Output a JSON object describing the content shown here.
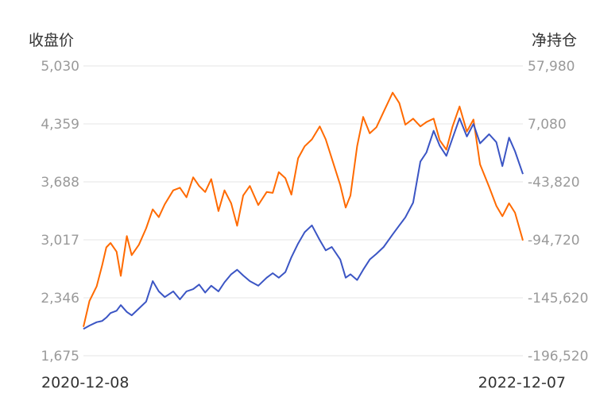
{
  "axes": {
    "left_title": "收盘价",
    "right_title": "净持仓"
  },
  "chart_data": {
    "type": "line",
    "title": "",
    "grid": true,
    "x_range": [
      "2020-12-08",
      "2022-12-07"
    ],
    "x_tick_labels": [
      "2020-12-08",
      "2022-12-07"
    ],
    "y_left": {
      "label": "收盘价",
      "range": [
        1675,
        5030
      ],
      "tick_labels": [
        "5,030",
        "4,359",
        "3,688",
        "3,017",
        "2,346",
        "1,675"
      ]
    },
    "y_right": {
      "label": "净持仓",
      "range": [
        -196520,
        57980
      ],
      "tick_labels": [
        "57,980",
        "7,080",
        "-43,820",
        "-94,720",
        "-145,620",
        "-196,520"
      ]
    },
    "series": [
      {
        "axis": "left",
        "color": "#ff6a00",
        "points": [
          [
            "2020-12-08",
            2010
          ],
          [
            "2020-12-18",
            2310
          ],
          [
            "2020-12-30",
            2480
          ],
          [
            "2021-01-08",
            2720
          ],
          [
            "2021-01-15",
            2930
          ],
          [
            "2021-01-22",
            2980
          ],
          [
            "2021-02-01",
            2880
          ],
          [
            "2021-02-08",
            2600
          ],
          [
            "2021-02-18",
            3060
          ],
          [
            "2021-02-26",
            2840
          ],
          [
            "2021-03-10",
            2960
          ],
          [
            "2021-03-22",
            3150
          ],
          [
            "2021-04-02",
            3370
          ],
          [
            "2021-04-12",
            3280
          ],
          [
            "2021-04-22",
            3430
          ],
          [
            "2021-05-06",
            3590
          ],
          [
            "2021-05-17",
            3620
          ],
          [
            "2021-05-28",
            3510
          ],
          [
            "2021-06-08",
            3740
          ],
          [
            "2021-06-18",
            3640
          ],
          [
            "2021-06-28",
            3570
          ],
          [
            "2021-07-08",
            3720
          ],
          [
            "2021-07-20",
            3350
          ],
          [
            "2021-07-30",
            3590
          ],
          [
            "2021-08-10",
            3440
          ],
          [
            "2021-08-20",
            3180
          ],
          [
            "2021-08-30",
            3530
          ],
          [
            "2021-09-10",
            3640
          ],
          [
            "2021-09-24",
            3420
          ],
          [
            "2021-10-08",
            3570
          ],
          [
            "2021-10-18",
            3560
          ],
          [
            "2021-10-28",
            3800
          ],
          [
            "2021-11-08",
            3730
          ],
          [
            "2021-11-18",
            3540
          ],
          [
            "2021-11-29",
            3960
          ],
          [
            "2021-12-10",
            4100
          ],
          [
            "2021-12-22",
            4180
          ],
          [
            "2022-01-04",
            4330
          ],
          [
            "2022-01-14",
            4180
          ],
          [
            "2022-01-24",
            3960
          ],
          [
            "2022-02-07",
            3650
          ],
          [
            "2022-02-16",
            3390
          ],
          [
            "2022-02-24",
            3530
          ],
          [
            "2022-03-07",
            4100
          ],
          [
            "2022-03-17",
            4440
          ],
          [
            "2022-03-28",
            4250
          ],
          [
            "2022-04-08",
            4320
          ],
          [
            "2022-04-20",
            4500
          ],
          [
            "2022-05-05",
            4720
          ],
          [
            "2022-05-16",
            4600
          ],
          [
            "2022-05-26",
            4350
          ],
          [
            "2022-06-08",
            4420
          ],
          [
            "2022-06-20",
            4330
          ],
          [
            "2022-06-30",
            4380
          ],
          [
            "2022-07-12",
            4420
          ],
          [
            "2022-07-22",
            4170
          ],
          [
            "2022-08-02",
            4060
          ],
          [
            "2022-08-12",
            4320
          ],
          [
            "2022-08-24",
            4560
          ],
          [
            "2022-09-05",
            4270
          ],
          [
            "2022-09-16",
            4410
          ],
          [
            "2022-09-27",
            3890
          ],
          [
            "2022-10-12",
            3630
          ],
          [
            "2022-10-24",
            3410
          ],
          [
            "2022-11-03",
            3290
          ],
          [
            "2022-11-14",
            3440
          ],
          [
            "2022-11-24",
            3330
          ],
          [
            "2022-12-07",
            3010
          ]
        ]
      },
      {
        "axis": "right",
        "color": "#3b55c4",
        "points": [
          [
            "2020-12-08",
            -173000
          ],
          [
            "2020-12-18",
            -170000
          ],
          [
            "2020-12-30",
            -167000
          ],
          [
            "2021-01-08",
            -166000
          ],
          [
            "2021-01-15",
            -163000
          ],
          [
            "2021-01-22",
            -159000
          ],
          [
            "2021-02-01",
            -157000
          ],
          [
            "2021-02-08",
            -152000
          ],
          [
            "2021-02-18",
            -158000
          ],
          [
            "2021-02-26",
            -161000
          ],
          [
            "2021-03-10",
            -155000
          ],
          [
            "2021-03-22",
            -149000
          ],
          [
            "2021-04-02",
            -131000
          ],
          [
            "2021-04-12",
            -140000
          ],
          [
            "2021-04-22",
            -145000
          ],
          [
            "2021-05-06",
            -140000
          ],
          [
            "2021-05-17",
            -147000
          ],
          [
            "2021-05-28",
            -140000
          ],
          [
            "2021-06-08",
            -138000
          ],
          [
            "2021-06-18",
            -134000
          ],
          [
            "2021-06-28",
            -141000
          ],
          [
            "2021-07-08",
            -135000
          ],
          [
            "2021-07-20",
            -140000
          ],
          [
            "2021-07-30",
            -132000
          ],
          [
            "2021-08-10",
            -125000
          ],
          [
            "2021-08-20",
            -121000
          ],
          [
            "2021-08-30",
            -126000
          ],
          [
            "2021-09-10",
            -131000
          ],
          [
            "2021-09-24",
            -135000
          ],
          [
            "2021-10-08",
            -128000
          ],
          [
            "2021-10-18",
            -124000
          ],
          [
            "2021-10-28",
            -128000
          ],
          [
            "2021-11-08",
            -123000
          ],
          [
            "2021-11-18",
            -110000
          ],
          [
            "2021-11-29",
            -98000
          ],
          [
            "2021-12-10",
            -88000
          ],
          [
            "2021-12-22",
            -82000
          ],
          [
            "2022-01-04",
            -95000
          ],
          [
            "2022-01-14",
            -104000
          ],
          [
            "2022-01-24",
            -101000
          ],
          [
            "2022-02-07",
            -112000
          ],
          [
            "2022-02-16",
            -128000
          ],
          [
            "2022-02-24",
            -125000
          ],
          [
            "2022-03-07",
            -130000
          ],
          [
            "2022-03-17",
            -121000
          ],
          [
            "2022-03-28",
            -112000
          ],
          [
            "2022-04-08",
            -107000
          ],
          [
            "2022-04-20",
            -101000
          ],
          [
            "2022-05-05",
            -90000
          ],
          [
            "2022-05-16",
            -82000
          ],
          [
            "2022-05-26",
            -75000
          ],
          [
            "2022-06-08",
            -62000
          ],
          [
            "2022-06-20",
            -26000
          ],
          [
            "2022-06-30",
            -18000
          ],
          [
            "2022-07-12",
            1000
          ],
          [
            "2022-07-22",
            -12000
          ],
          [
            "2022-08-02",
            -21000
          ],
          [
            "2022-08-12",
            -6000
          ],
          [
            "2022-08-24",
            12000
          ],
          [
            "2022-09-05",
            -4000
          ],
          [
            "2022-09-16",
            7000
          ],
          [
            "2022-09-27",
            -10000
          ],
          [
            "2022-10-12",
            -2000
          ],
          [
            "2022-10-24",
            -9000
          ],
          [
            "2022-11-03",
            -30000
          ],
          [
            "2022-11-14",
            -5000
          ],
          [
            "2022-11-24",
            -17000
          ],
          [
            "2022-12-07",
            -37000
          ]
        ]
      }
    ]
  }
}
